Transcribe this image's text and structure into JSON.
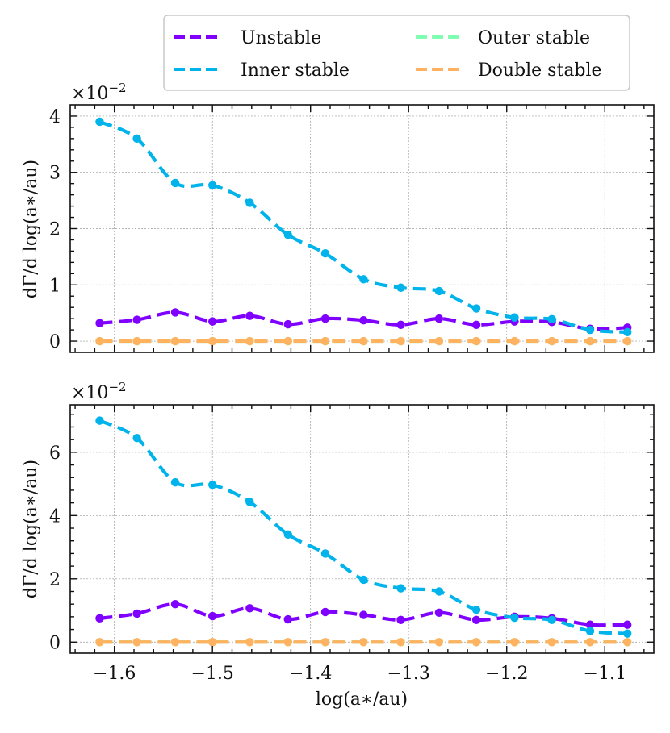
{
  "chart_data": {
    "type": "line",
    "legend": {
      "placement": "top",
      "entries": [
        {
          "label": "Unstable",
          "color": "#8000ff"
        },
        {
          "label": "Outer stable",
          "color": "#80ffb4"
        },
        {
          "label": "Inner stable",
          "color": "#00b4eb"
        },
        {
          "label": "Double stable",
          "color": "#ffb360"
        }
      ]
    },
    "x": [
      -1.615,
      -1.577,
      -1.538,
      -1.5,
      -1.462,
      -1.423,
      -1.385,
      -1.346,
      -1.308,
      -1.269,
      -1.231,
      -1.192,
      -1.154,
      -1.115,
      -1.077
    ],
    "xlabel": "log(a∗/au)",
    "xlim": [
      -1.645,
      -1.05
    ],
    "xticks": [
      -1.6,
      -1.5,
      -1.4,
      -1.3,
      -1.2,
      -1.1
    ],
    "xtick_labels": [
      "−1.6",
      "−1.5",
      "−1.4",
      "−1.3",
      "−1.2",
      "−1.1"
    ],
    "panels": [
      {
        "ylabel": "dΓ/d log(a∗/au)",
        "scale_label": "×10",
        "scale_exp": "−2",
        "ylim": [
          -0.2,
          4.2
        ],
        "yticks": [
          0,
          1,
          2,
          3,
          4
        ],
        "ytick_labels": [
          "0",
          "1",
          "2",
          "3",
          "4"
        ],
        "series": [
          {
            "name": "Unstable",
            "values": [
              0.32,
              0.38,
              0.51,
              0.35,
              0.45,
              0.3,
              0.4,
              0.37,
              0.29,
              0.4,
              0.29,
              0.35,
              0.34,
              0.22,
              0.24
            ]
          },
          {
            "name": "Outer stable",
            "values": [
              0,
              0,
              0,
              0,
              0,
              0,
              0,
              0,
              0,
              0,
              0,
              0,
              0,
              0,
              0
            ]
          },
          {
            "name": "Inner stable",
            "values": [
              3.9,
              3.6,
              2.81,
              2.77,
              2.46,
              1.89,
              1.56,
              1.1,
              0.95,
              0.89,
              0.58,
              0.42,
              0.39,
              0.2,
              0.16
            ]
          },
          {
            "name": "Double stable",
            "values": [
              0,
              0,
              0,
              0,
              0,
              0,
              0,
              0,
              0,
              0,
              0,
              0,
              0,
              0,
              0
            ]
          }
        ]
      },
      {
        "ylabel": "dΓ/d log(a∗/au)",
        "scale_label": "×10",
        "scale_exp": "−2",
        "ylim": [
          -0.35,
          7.5
        ],
        "yticks": [
          0,
          2,
          4,
          6
        ],
        "ytick_labels": [
          "0",
          "2",
          "4",
          "6"
        ],
        "series": [
          {
            "name": "Unstable",
            "values": [
              0.75,
              0.9,
              1.2,
              0.82,
              1.07,
              0.72,
              0.95,
              0.86,
              0.7,
              0.93,
              0.7,
              0.8,
              0.75,
              0.55,
              0.55
            ]
          },
          {
            "name": "Outer stable",
            "values": [
              0,
              0,
              0,
              0,
              0,
              0,
              0,
              0,
              0,
              0,
              0,
              0,
              0,
              0,
              0
            ]
          },
          {
            "name": "Inner stable",
            "values": [
              7.0,
              6.45,
              5.05,
              4.97,
              4.43,
              3.4,
              2.8,
              1.97,
              1.7,
              1.6,
              1.02,
              0.77,
              0.7,
              0.35,
              0.27
            ]
          },
          {
            "name": "Double stable",
            "values": [
              0,
              0,
              0,
              0,
              0,
              0,
              0,
              0,
              0,
              0,
              0,
              0,
              0,
              0,
              0
            ]
          }
        ]
      }
    ]
  }
}
